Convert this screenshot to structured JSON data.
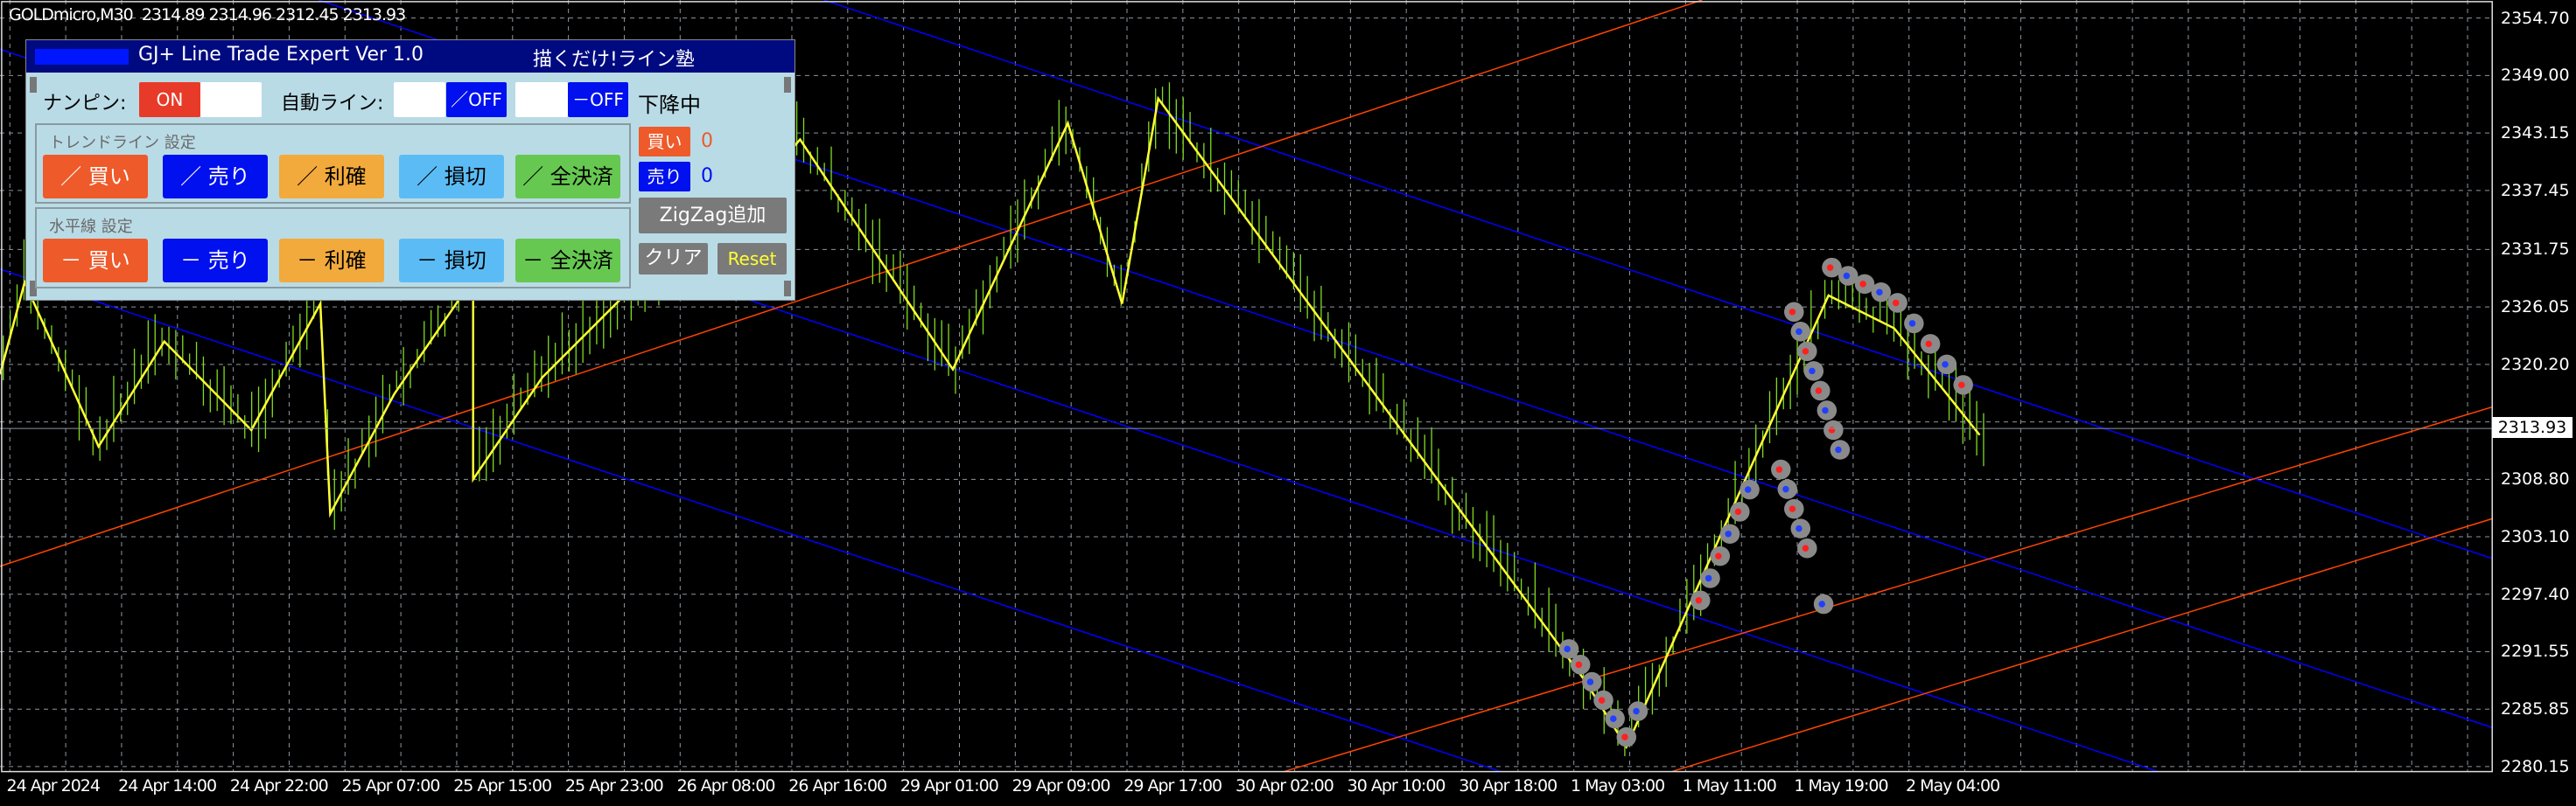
{
  "header": {
    "symbol_info": "GOLDmicro,M30  2314.89 2314.96 2312.45 2313.93"
  },
  "panel": {
    "title": "GJ+ Line Trade Expert Ver 1.0",
    "brand": "描くだけ!ライン塾",
    "nanpin_label": "ナンピン:",
    "nanpin_on": "ON",
    "auto_line_label": "自動ライン:",
    "auto_trend_off": "／OFF",
    "auto_horizontal_off": "－OFF",
    "trend_status": "下降中",
    "trend_group_label": "トレンドライン 設定",
    "trend_buttons": [
      "／ 買い",
      "／ 売り",
      "／ 利確",
      "／ 損切",
      "／ 全決済"
    ],
    "horizontal_group_label": "水平線 設定",
    "horizontal_buttons": [
      "－ 買い",
      "－ 売り",
      "－ 利確",
      "－ 損切",
      "－ 全決済"
    ],
    "buy_label": "買い",
    "buy_count": "0",
    "sell_label": "売り",
    "sell_count": "0",
    "zigzag_button": "ZigZag追加",
    "clear_button": "クリア",
    "reset_button": "Reset"
  },
  "price_axis": [
    "2354.70",
    "2349.00",
    "2343.15",
    "2337.45",
    "2331.75",
    "2326.05",
    "2320.20",
    "2308.80",
    "2303.10",
    "2297.40",
    "2291.55",
    "2285.85",
    "2280.15"
  ],
  "current_price": "2313.93",
  "time_axis": [
    "24 Apr 2024",
    "24 Apr 14:00",
    "24 Apr 22:00",
    "25 Apr 07:00",
    "25 Apr 15:00",
    "25 Apr 23:00",
    "26 Apr 08:00",
    "26 Apr 16:00",
    "29 Apr 01:00",
    "29 Apr 09:00",
    "29 Apr 17:00",
    "30 Apr 02:00",
    "30 Apr 10:00",
    "30 Apr 18:00",
    "1 May 03:00",
    "1 May 11:00",
    "1 May 19:00",
    "2 May 04:00"
  ],
  "colors": {
    "bars": "#7fdc1e",
    "zigzag": "#ffff33",
    "channel_down": "#0000ff",
    "channel_up": "#ff4500",
    "buy": "#ee5a2a",
    "sell": "#0010ee",
    "take_profit": "#f2aa3c",
    "stop_loss": "#5bbcf5",
    "close_all": "#66c850"
  }
}
